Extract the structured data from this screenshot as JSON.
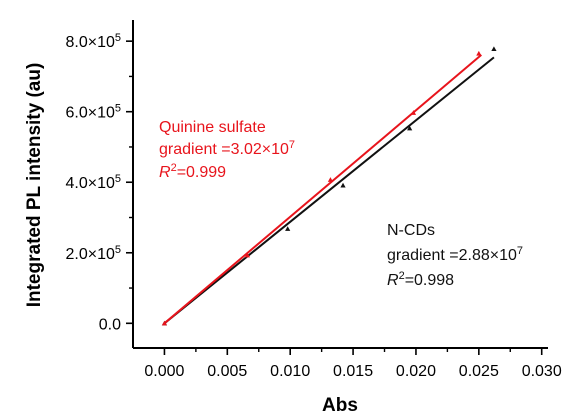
{
  "chart_data": {
    "type": "scatter",
    "xlabel": "Abs",
    "ylabel": "Integrated PL intensity (au)",
    "xlim": [
      -0.0025,
      0.0305
    ],
    "ylim": [
      -70000,
      860000
    ],
    "x_ticks": [
      0.0,
      0.005,
      0.01,
      0.015,
      0.02,
      0.025,
      0.03
    ],
    "x_tick_labels": [
      "0.000",
      "0.005",
      "0.010",
      "0.015",
      "0.020",
      "0.025",
      "0.030"
    ],
    "y_ticks": [
      0,
      200000,
      400000,
      600000,
      800000
    ],
    "y_tick_labels": [
      {
        "mant": "0.0",
        "exp": ""
      },
      {
        "mant": "2.0×10",
        "exp": "5"
      },
      {
        "mant": "4.0×10",
        "exp": "5"
      },
      {
        "mant": "6.0×10",
        "exp": "5"
      },
      {
        "mant": "8.0×10",
        "exp": "5"
      }
    ],
    "series": [
      {
        "color": "#e8141c",
        "x": [
          0.0,
          0.0066,
          0.0132,
          0.0198,
          0.025
        ],
        "y": [
          0,
          193000,
          407000,
          597000,
          765000
        ],
        "fit_x": [
          0.0,
          0.0252
        ],
        "fit_y": [
          0,
          761000
        ],
        "annotation": {
          "line1": "Quinine sulfate",
          "grad_prefix": "gradient =3.02×10",
          "grad_exp": "7",
          "r_letter": "R",
          "r_exp": "2",
          "r_value": "=0.999"
        }
      },
      {
        "color": "#111111",
        "x": [
          0.0,
          0.0098,
          0.0142,
          0.0195,
          0.0262
        ],
        "y": [
          0,
          268000,
          391000,
          553000,
          778000
        ],
        "fit_x": [
          0.0,
          0.0262
        ],
        "fit_y": [
          0,
          754000
        ],
        "annotation": {
          "line1": "N-CDs",
          "grad_prefix": "gradient =2.88×10",
          "grad_exp": "7",
          "r_letter": "R",
          "r_exp": "2",
          "r_value": "=0.998"
        }
      }
    ]
  }
}
